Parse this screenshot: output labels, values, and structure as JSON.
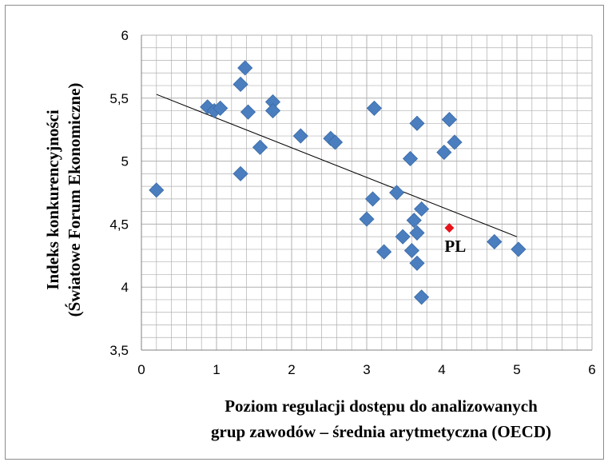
{
  "chart_data": {
    "type": "scatter",
    "xlabel_lines": [
      "Poziom regulacji dostępu do analizowanych",
      "grup zawodów – średnia arytmetyczna (OECD)"
    ],
    "ylabel_lines": [
      "Indeks konkurencyjności",
      "(Światowe Forum Ekonomiczne)"
    ],
    "xlim": [
      0,
      6
    ],
    "ylim": [
      3.5,
      6
    ],
    "x_ticks": [
      "0",
      "1",
      "2",
      "3",
      "4",
      "5",
      "6"
    ],
    "y_ticks": [
      "3,5",
      "4",
      "4,5",
      "5",
      "5,5",
      "6"
    ],
    "grid": true,
    "colors": {
      "points": "#4a7ebf",
      "highlight": "#e8121a",
      "trendline": "#000000",
      "grid": "#b0b0b0"
    },
    "points": [
      {
        "x": 0.2,
        "y": 4.77
      },
      {
        "x": 0.88,
        "y": 5.43
      },
      {
        "x": 0.97,
        "y": 5.4
      },
      {
        "x": 1.05,
        "y": 5.42
      },
      {
        "x": 1.32,
        "y": 5.61
      },
      {
        "x": 1.38,
        "y": 5.74
      },
      {
        "x": 1.42,
        "y": 5.39
      },
      {
        "x": 1.32,
        "y": 4.9
      },
      {
        "x": 1.58,
        "y": 5.11
      },
      {
        "x": 1.75,
        "y": 5.47
      },
      {
        "x": 1.75,
        "y": 5.4
      },
      {
        "x": 2.12,
        "y": 5.2
      },
      {
        "x": 2.52,
        "y": 5.18
      },
      {
        "x": 2.58,
        "y": 5.15
      },
      {
        "x": 3.0,
        "y": 4.54
      },
      {
        "x": 3.08,
        "y": 4.7
      },
      {
        "x": 3.1,
        "y": 5.42
      },
      {
        "x": 3.23,
        "y": 4.28
      },
      {
        "x": 3.4,
        "y": 4.75
      },
      {
        "x": 3.48,
        "y": 4.4
      },
      {
        "x": 3.58,
        "y": 5.02
      },
      {
        "x": 3.6,
        "y": 4.29
      },
      {
        "x": 3.63,
        "y": 4.53
      },
      {
        "x": 3.67,
        "y": 4.43
      },
      {
        "x": 3.67,
        "y": 4.19
      },
      {
        "x": 3.67,
        "y": 5.3
      },
      {
        "x": 3.73,
        "y": 4.62
      },
      {
        "x": 3.73,
        "y": 3.92
      },
      {
        "x": 4.03,
        "y": 5.07
      },
      {
        "x": 4.1,
        "y": 5.33
      },
      {
        "x": 4.17,
        "y": 5.15
      },
      {
        "x": 4.7,
        "y": 4.36
      },
      {
        "x": 5.02,
        "y": 4.3
      }
    ],
    "highlight_point": {
      "x": 4.1,
      "y": 4.47,
      "label": "PL"
    },
    "trendline": {
      "x": [
        0.2,
        5.0
      ],
      "y": [
        5.53,
        4.4
      ]
    }
  }
}
